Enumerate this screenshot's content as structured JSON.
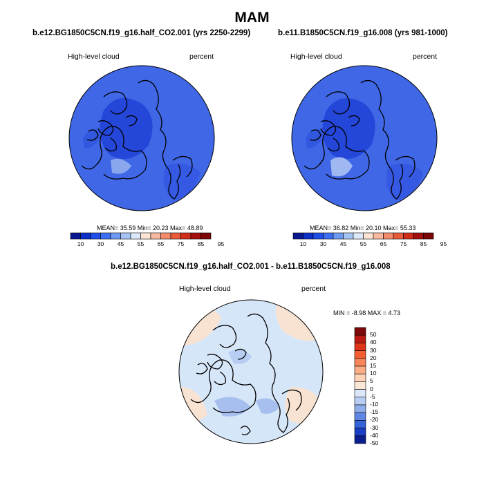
{
  "figure": {
    "title": "MAM"
  },
  "panels": [
    {
      "case_title": "b.e12.BG1850C5CN.f19_g16.half_CO2.001 (yrs 2250-2299)",
      "variable": "High-level cloud",
      "units": "percent",
      "stats": "MEAN=  35.59  Min=  20.23  Max=  48.89"
    },
    {
      "case_title": "b.e11.B1850C5CN.f19_g16.008 (yrs 981-1000)",
      "variable": "High-level cloud",
      "units": "percent",
      "stats": "MEAN=  36.82  Min=  20.10  Max=  55.33"
    },
    {
      "case_title": "b.e12.BG1850C5CN.f19_g16.half_CO2.001 - b.e11.B1850C5CN.f19_g16.008",
      "variable": "High-level cloud",
      "units": "percent",
      "stats": "MIN =  -8.98 MAX =   4.73"
    }
  ],
  "colorbar_abs": {
    "labels": [
      "10",
      "30",
      "45",
      "55",
      "65",
      "75",
      "85",
      "95"
    ],
    "colors": [
      "#08198f",
      "#0d30c9",
      "#1f4fe8",
      "#3b6ef0",
      "#6e99f2",
      "#a6c3f5",
      "#dce9fa",
      "#fde4d4",
      "#f9b9a0",
      "#f38a6a",
      "#e85a3a",
      "#d02d1b",
      "#a40f0f",
      "#7a0606"
    ]
  },
  "colorbar_diff": {
    "labels": [
      "50",
      "40",
      "30",
      "20",
      "15",
      "10",
      "5",
      "0",
      "-5",
      "-10",
      "-15",
      "-20",
      "-30",
      "-40",
      "-50"
    ],
    "colors": [
      "#7d0a0a",
      "#b81a12",
      "#de3418",
      "#f25d32",
      "#f7865a",
      "#fbae86",
      "#fdd2b8",
      "#fbe7d6",
      "#dce8f9",
      "#b8cdf2",
      "#8eaeeb",
      "#5f86e2",
      "#3362d9",
      "#1a3ec3",
      "#0a1f8d"
    ]
  },
  "colors": {
    "ocean_abs": "#3f67e6",
    "dark_patch": "#1f3ed8",
    "light_patch": "#8aa7ee",
    "diff_base": "#d6e6f9",
    "diff_pos": "#f8e3d2",
    "diff_neg": "#a7bfee"
  }
}
